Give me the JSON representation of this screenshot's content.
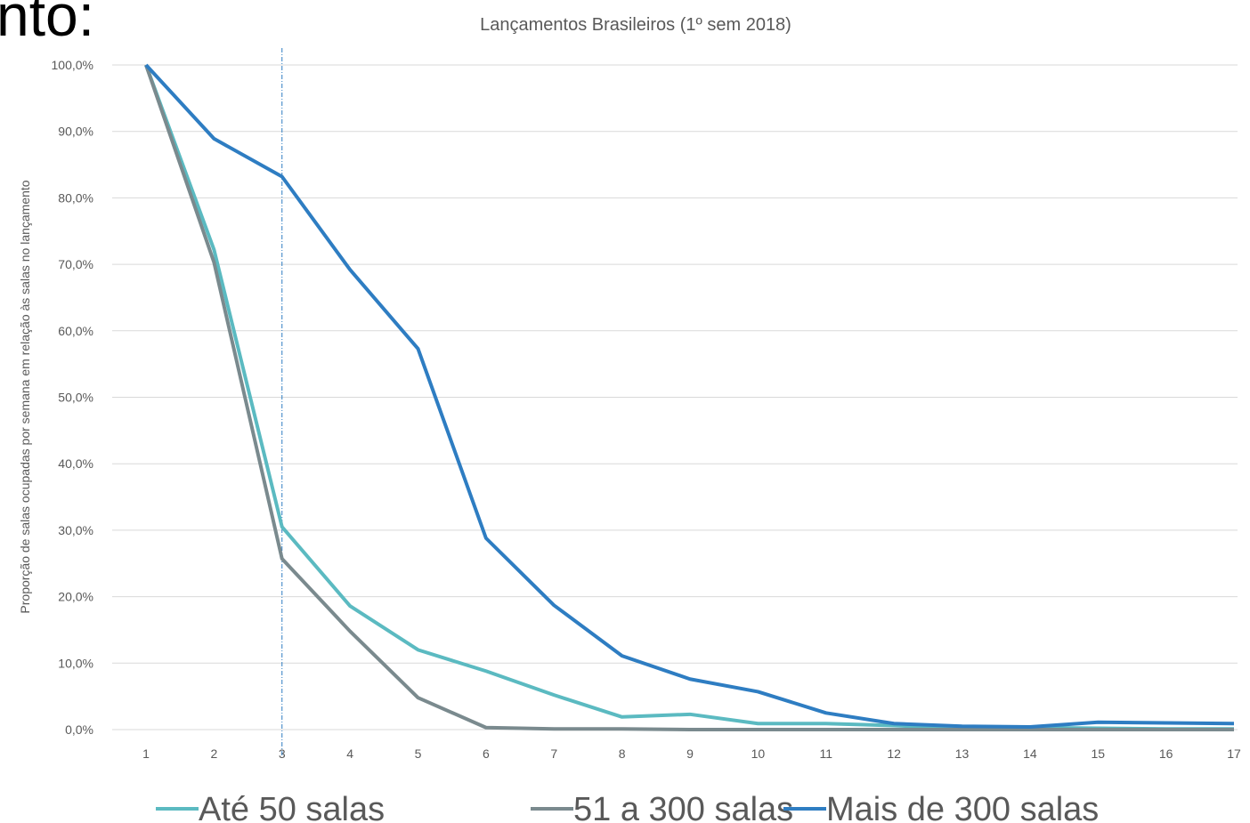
{
  "fragment": "nto:",
  "chart_data": {
    "type": "line",
    "title": "Lançamentos Brasileiros (1º sem 2018)",
    "y_label": "Proporção de salas ocupadas por semana em relação às salas no lançamento",
    "categories": [
      "1",
      "2",
      "3",
      "4",
      "5",
      "6",
      "7",
      "8",
      "9",
      "10",
      "11",
      "12",
      "13",
      "14",
      "15",
      "16",
      "17"
    ],
    "series": [
      {
        "name": "Até 50 salas",
        "color": "#5bbac1",
        "values": [
          100,
          72.2,
          30.5,
          18.6,
          12.0,
          8.8,
          5.2,
          1.9,
          2.3,
          0.9,
          0.9,
          0.6,
          0.2,
          0.3,
          0.2,
          0.1,
          0.1
        ]
      },
      {
        "name": "51 a 300 salas",
        "color": "#7a8a8e",
        "values": [
          100,
          70.3,
          25.7,
          14.8,
          4.8,
          0.3,
          0.1,
          0.1,
          0.0,
          0.0,
          0.0,
          0.0,
          0.0,
          0.0,
          0.0,
          0.0,
          0.0
        ]
      },
      {
        "name": "Mais de 300 salas",
        "color": "#2e7dc2",
        "values": [
          100,
          88.9,
          83.2,
          69.2,
          57.3,
          28.8,
          18.7,
          11.1,
          7.6,
          5.7,
          2.5,
          0.9,
          0.5,
          0.4,
          1.1,
          1.0,
          0.9
        ]
      }
    ],
    "ylim": [
      0,
      100
    ],
    "yticks": [
      {
        "value": 0,
        "label": "0,0%"
      },
      {
        "value": 10,
        "label": "10,0%"
      },
      {
        "value": 20,
        "label": "20,0%"
      },
      {
        "value": 30,
        "label": "30,0%"
      },
      {
        "value": 40,
        "label": "40,0%"
      },
      {
        "value": 50,
        "label": "50,0%"
      },
      {
        "value": 60,
        "label": "60,0%"
      },
      {
        "value": 70,
        "label": "70,0%"
      },
      {
        "value": 80,
        "label": "80,0%"
      },
      {
        "value": 90,
        "label": "90,0%"
      },
      {
        "value": 100,
        "label": "100,0%"
      }
    ],
    "grid": true,
    "legend": "bottom"
  }
}
